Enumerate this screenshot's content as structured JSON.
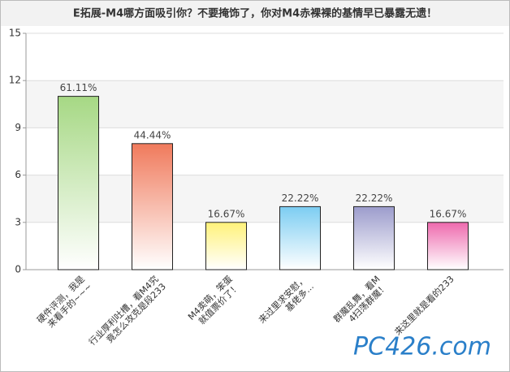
{
  "chart_data": {
    "type": "bar",
    "title": "E拓展-M4哪方面吸引你？不要掩饰了，你对M4赤裸裸的基情早已暴露无遗！",
    "categories": [
      "硬件评测，我是来看手的~~~",
      "行业厚利吐槽，看M4究竟怎么攻克是段233",
      "M4卖萌，笨蛋就值票价了！",
      "来过里求安慰，基佬多...",
      "群魔乱舞，看M4扫荡群魔！",
      "来这里就是看的233"
    ],
    "values": [
      11,
      8,
      3,
      4,
      4,
      3
    ],
    "percent_labels": [
      "61.11%",
      "44.44%",
      "16.67%",
      "22.22%",
      "22.22%",
      "16.67%"
    ],
    "colors": [
      "#a6d884",
      "#f07a5c",
      "#fff27a",
      "#7ccdf2",
      "#9c9ccc",
      "#ee6aae"
    ],
    "ylim": [
      0,
      15
    ],
    "yticks": [
      0,
      3,
      6,
      9,
      12,
      15
    ],
    "grid": true,
    "watermark": "PC426.com"
  }
}
